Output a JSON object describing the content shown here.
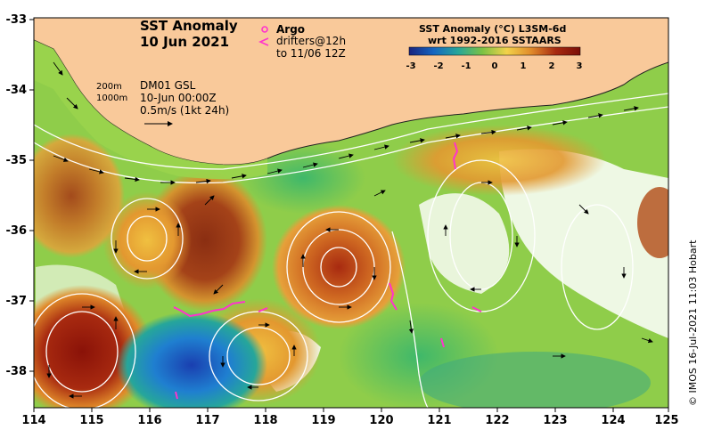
{
  "title": {
    "line1": "SST Anomaly",
    "line2": "10 Jun 2021"
  },
  "markers": {
    "argo_label": "Argo",
    "drifters_label": "drifters@12h",
    "drifters_sub": "to 11/06 12Z",
    "argo_color": "#ff33cc",
    "drifter_color": "#ff33cc"
  },
  "colorbar": {
    "title_line1": "SST Anomaly (°C) L3SM-6d",
    "title_line2": "wrt 1992-2016 SSTAARS",
    "ticks": [
      "-3",
      "-2",
      "-1",
      "0",
      "1",
      "2",
      "3"
    ],
    "stops": [
      "#1a237e",
      "#1565c0",
      "#26a69a",
      "#7cc243",
      "#f2d24a",
      "#e08a2a",
      "#a82a10",
      "#7a0e08"
    ]
  },
  "info": {
    "iso200": "200m",
    "iso1000": "1000m",
    "model": "DM01 GSL",
    "time": "10-Jun 00:00Z",
    "scale": "0.5m/s (1kt 24h)"
  },
  "axes": {
    "x_ticks": [
      "114",
      "115",
      "116",
      "117",
      "118",
      "119",
      "120",
      "121",
      "122",
      "123",
      "124",
      "125"
    ],
    "y_ticks": [
      "-33",
      "-34",
      "-35",
      "-36",
      "-37",
      "-38"
    ]
  },
  "credit": "© IMOS 16-Jul-2021 11:03 Hobart",
  "colors": {
    "land": "#f9c99a",
    "coast": "#222222",
    "contour": "#ffffff",
    "arrow": "#000000"
  }
}
